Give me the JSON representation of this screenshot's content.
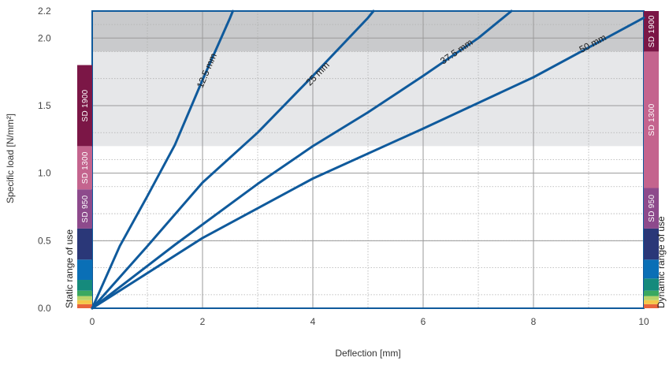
{
  "chart_data": {
    "type": "line",
    "xlabel": "Deflection [mm]",
    "ylabel": "Specific load [N/mm²]",
    "xlim": [
      0,
      10
    ],
    "ylim": [
      0,
      2.2
    ],
    "x_ticks": [
      0,
      2,
      4,
      6,
      8,
      10
    ],
    "y_ticks": [
      0.0,
      0.5,
      1.0,
      1.5,
      2.0,
      2.2
    ],
    "y_tick_labels": [
      "0.0",
      "0.5",
      "1.0",
      "1.5",
      "2.0",
      "2.2"
    ],
    "grid": true,
    "series": [
      {
        "name": "12.5 mm",
        "x": [
          0,
          0.5,
          1,
          1.5,
          2,
          2.5,
          2.55
        ],
        "y": [
          0,
          0.46,
          0.83,
          1.21,
          1.69,
          2.15,
          2.2
        ]
      },
      {
        "name": "25 mm",
        "x": [
          0,
          1,
          2,
          3,
          4,
          5,
          5.1
        ],
        "y": [
          0,
          0.46,
          0.93,
          1.3,
          1.72,
          2.15,
          2.2
        ]
      },
      {
        "name": "37.5 mm",
        "x": [
          0,
          1.5,
          3,
          4,
          5,
          6,
          7,
          7.6
        ],
        "y": [
          0,
          0.47,
          0.92,
          1.2,
          1.45,
          1.72,
          2.0,
          2.2
        ]
      },
      {
        "name": "50 mm",
        "x": [
          0,
          2,
          4,
          6,
          8,
          10
        ],
        "y": [
          0,
          0.52,
          0.96,
          1.33,
          1.71,
          2.15
        ]
      }
    ],
    "shaded_regions": [
      {
        "y": [
          1.2,
          1.9
        ],
        "color": "#e6e7e9"
      },
      {
        "y": [
          1.9,
          2.2
        ],
        "color": "#c9cacc"
      }
    ],
    "line_color": "#0f5a9c",
    "static_range": {
      "label": "Static range of use",
      "bands": [
        {
          "from": 0.0,
          "to": 0.03,
          "color": "#e8643c",
          "label": ""
        },
        {
          "from": 0.03,
          "to": 0.06,
          "color": "#f4c84a",
          "label": ""
        },
        {
          "from": 0.06,
          "to": 0.09,
          "color": "#b9d36a",
          "label": ""
        },
        {
          "from": 0.09,
          "to": 0.13,
          "color": "#3aa860",
          "label": ""
        },
        {
          "from": 0.13,
          "to": 0.21,
          "color": "#158a7c",
          "label": ""
        },
        {
          "from": 0.21,
          "to": 0.36,
          "color": "#0a6fb6",
          "label": ""
        },
        {
          "from": 0.36,
          "to": 0.59,
          "color": "#2a3778",
          "label": ""
        },
        {
          "from": 0.59,
          "to": 0.88,
          "color": "#8d4a8c",
          "label": "SD 950"
        },
        {
          "from": 0.88,
          "to": 1.2,
          "color": "#c4648e",
          "label": "SD 1300"
        },
        {
          "from": 1.2,
          "to": 1.8,
          "color": "#7b1646",
          "label": "SD 1900"
        }
      ]
    },
    "dynamic_range": {
      "label": "Dynamic range of use",
      "bands": [
        {
          "from": 0.0,
          "to": 0.03,
          "color": "#e8643c",
          "label": ""
        },
        {
          "from": 0.03,
          "to": 0.06,
          "color": "#f4c84a",
          "label": ""
        },
        {
          "from": 0.06,
          "to": 0.09,
          "color": "#b9d36a",
          "label": ""
        },
        {
          "from": 0.09,
          "to": 0.13,
          "color": "#3aa860",
          "label": ""
        },
        {
          "from": 0.13,
          "to": 0.22,
          "color": "#158a7c",
          "label": ""
        },
        {
          "from": 0.22,
          "to": 0.36,
          "color": "#0a6fb6",
          "label": ""
        },
        {
          "from": 0.36,
          "to": 0.59,
          "color": "#2a3778",
          "label": ""
        },
        {
          "from": 0.59,
          "to": 0.89,
          "color": "#8d4a8c",
          "label": "SD 950"
        },
        {
          "from": 0.89,
          "to": 1.9,
          "color": "#c4648e",
          "label": "SD 1300"
        },
        {
          "from": 1.9,
          "to": 2.2,
          "color": "#7b1646",
          "label": "SD 1900"
        }
      ]
    }
  }
}
